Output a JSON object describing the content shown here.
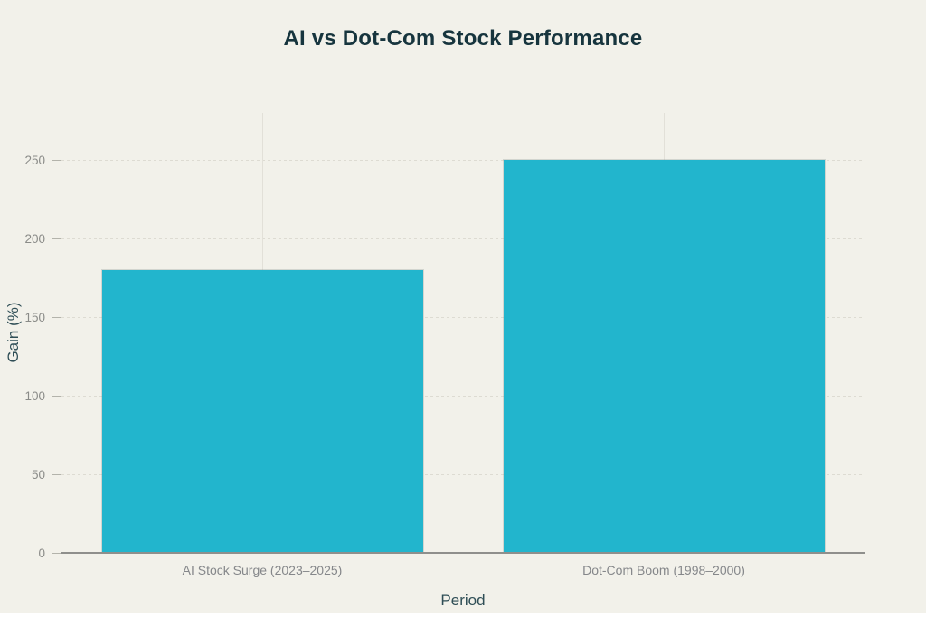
{
  "page": {
    "background_color": "#f2f1ea",
    "bottom_strip_color": "#ffffff"
  },
  "chart_data": {
    "type": "bar",
    "title": "AI vs Dot-Com Stock Performance",
    "categories": [
      "AI Stock Surge (2023–2025)",
      "Dot-Com Boom (1998–2000)"
    ],
    "values": [
      180,
      250
    ],
    "xlabel": "Period",
    "ylabel": "Gain (%)",
    "yticks": [
      0,
      50,
      100,
      150,
      200,
      250
    ],
    "ylim": [
      0,
      280
    ],
    "grid": true,
    "legend": false,
    "bar_color": "#22b5cd",
    "title_color": "#17353e",
    "axis_title_color": "#2f4e56",
    "tick_label_color": "#8a8b88",
    "category_label_color": "#85878a",
    "h_gridline_color": "#dddbd2",
    "v_gridline_color": "#e2e0d8",
    "tick_mark_color": "#b3b3ab",
    "axis_line_color": "#8f8f8c"
  }
}
